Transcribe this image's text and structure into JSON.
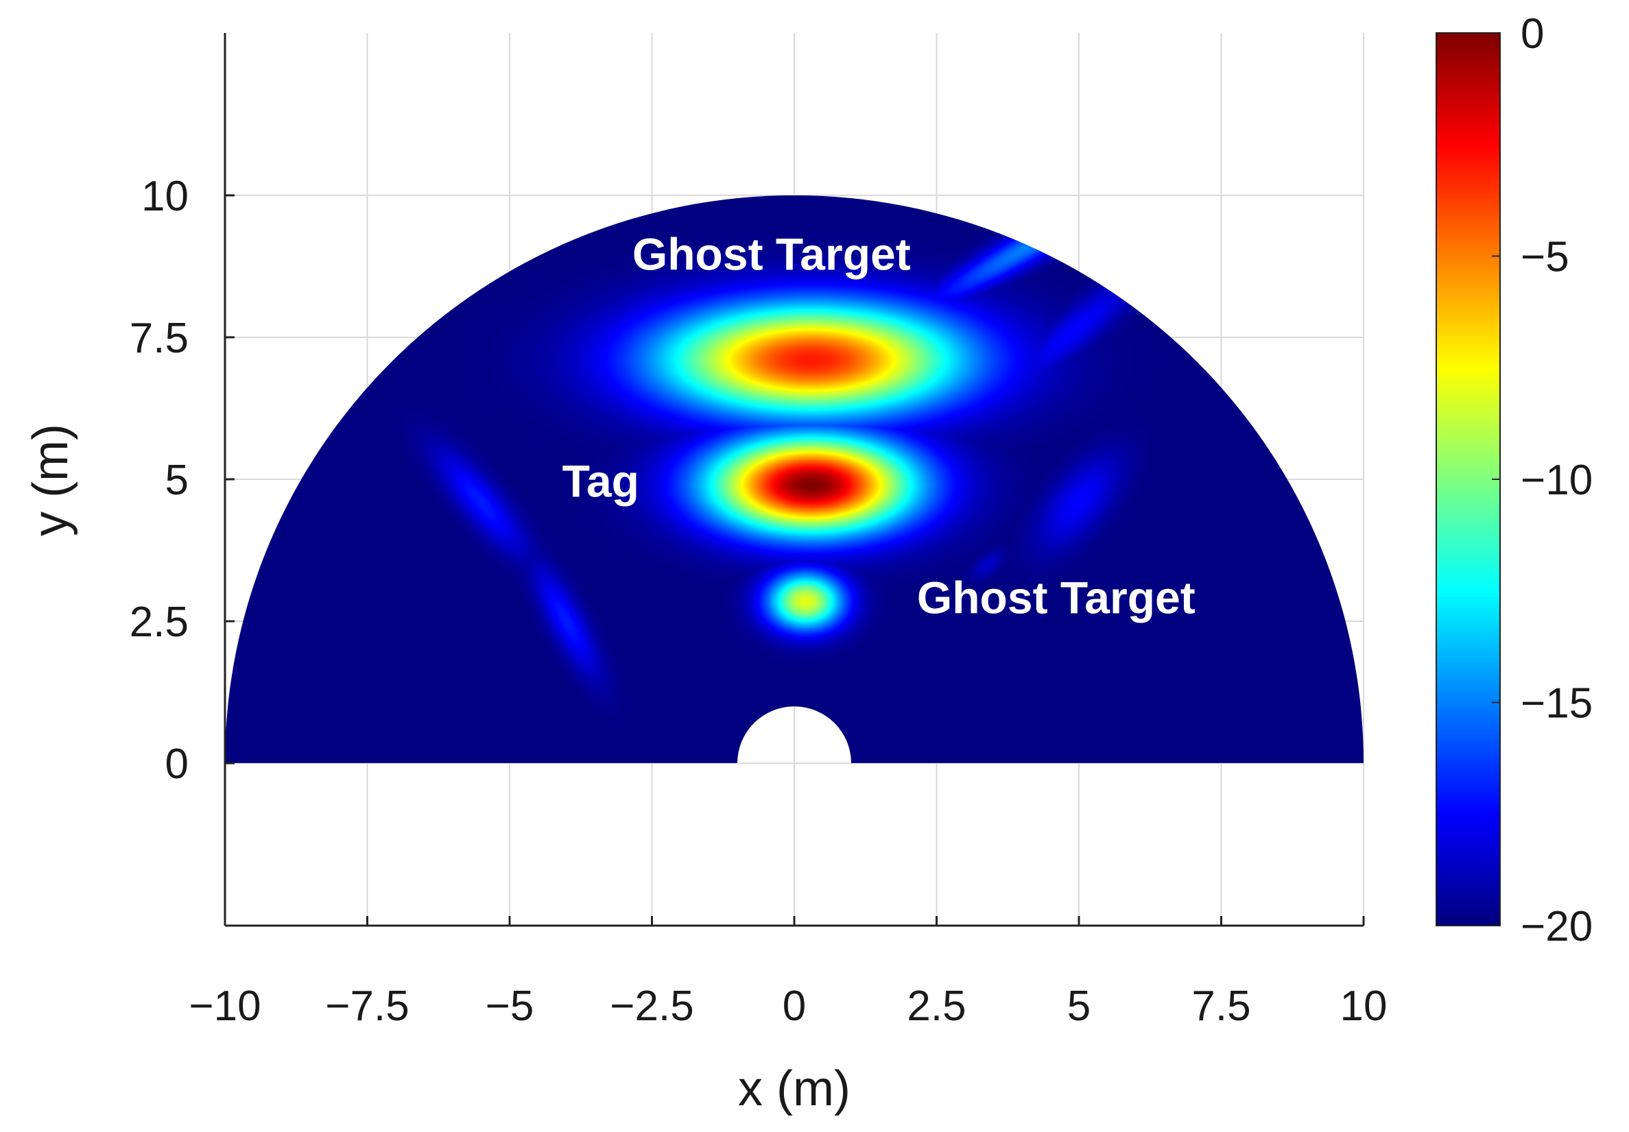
{
  "chart_data": {
    "type": "heatmap",
    "title": "",
    "xlabel": "x (m)",
    "ylabel": "y (m)",
    "xlim": [
      -10,
      10
    ],
    "ylim": [
      -2.86,
      12.86
    ],
    "x_ticks": [
      -10,
      -7.5,
      -5,
      -2.5,
      0,
      2.5,
      5,
      7.5,
      10
    ],
    "x_tick_labels": [
      "−10",
      "−7.5",
      "−5",
      "−2.5",
      "0",
      "2.5",
      "5",
      "7.5",
      "10"
    ],
    "y_ticks": [
      0,
      2.5,
      5,
      7.5,
      10
    ],
    "y_tick_labels": [
      "0",
      "2.5",
      "5",
      "7.5",
      "10"
    ],
    "grid": true,
    "colormap": "jet",
    "color_range": [
      -20,
      0
    ],
    "colorbar_ticks": [
      0,
      -5,
      -10,
      -15,
      -20
    ],
    "colorbar_tick_labels": [
      "0",
      "−5",
      "−10",
      "−15",
      "−20"
    ],
    "domain": {
      "shape": "half-annulus",
      "outer_radius": 10,
      "inner_radius": 1,
      "center": [
        0,
        0
      ]
    },
    "annotations": [
      {
        "text": "Ghost Target",
        "x": -0.4,
        "y": 8.9
      },
      {
        "text": "Tag",
        "x": -3.4,
        "y": 4.9
      },
      {
        "text": "Ghost Target",
        "x": 4.6,
        "y": 2.85
      }
    ],
    "blobs": [
      {
        "role": "tag",
        "x": 0.3,
        "y": 4.9,
        "rx": 2.1,
        "ry": 1.0,
        "peak": 0
      },
      {
        "role": "ghost",
        "x": 0.3,
        "y": 7.1,
        "rx": 3.1,
        "ry": 1.15,
        "peak": -3
      },
      {
        "role": "ghost",
        "x": 0.2,
        "y": 2.85,
        "rx": 0.8,
        "ry": 0.6,
        "peak": -8
      },
      {
        "role": "sidelobe",
        "x": -5.5,
        "y": 4.6,
        "rx": 1.4,
        "ry": 0.4,
        "angle": -50,
        "peak": -17
      },
      {
        "role": "sidelobe",
        "x": -4.0,
        "y": 2.5,
        "rx": 1.3,
        "ry": 0.35,
        "angle": -62,
        "peak": -17
      },
      {
        "role": "sidelobe",
        "x": 5.0,
        "y": 4.6,
        "rx": 1.2,
        "ry": 0.55,
        "angle": 50,
        "peak": -17.5
      },
      {
        "role": "sidelobe",
        "x": 4.9,
        "y": 7.6,
        "rx": 1.8,
        "ry": 0.4,
        "angle": 40,
        "peak": -17.5
      },
      {
        "role": "sidelobe",
        "x": 3.4,
        "y": 3.5,
        "rx": 0.4,
        "ry": 0.2,
        "angle": 40,
        "peak": -18.5
      },
      {
        "role": "sidelobe",
        "x": 4.2,
        "y": 9.15,
        "rx": 2.6,
        "ry": 0.35,
        "angle": 30,
        "peak": -15
      },
      {
        "role": "sidelobe",
        "x": -1.5,
        "y": 6.0,
        "rx": 1.5,
        "ry": 0.3,
        "angle": 0,
        "peak": -17.5
      }
    ]
  }
}
